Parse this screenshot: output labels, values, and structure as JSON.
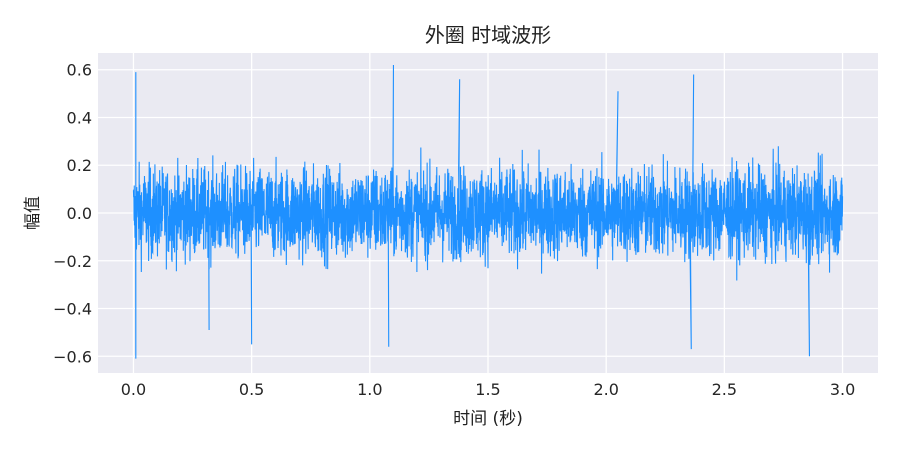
{
  "chart_data": {
    "type": "line",
    "title": "外圈 时域波形",
    "xlabel": "时间 (秒)",
    "ylabel": "幅值",
    "xlim": [
      -0.15,
      3.15
    ],
    "ylim": [
      -0.67,
      0.67
    ],
    "xticks": [
      0.0,
      0.5,
      1.0,
      1.5,
      2.0,
      2.5,
      3.0
    ],
    "xtick_labels": [
      "0.0",
      "0.5",
      "1.0",
      "1.5",
      "2.0",
      "2.5",
      "3.0"
    ],
    "yticks": [
      -0.6,
      -0.4,
      -0.2,
      0.0,
      0.2,
      0.4,
      0.6
    ],
    "ytick_labels": [
      "−0.6",
      "−0.4",
      "−0.2",
      "0.0",
      "0.2",
      "0.4",
      "0.6"
    ],
    "grid": true,
    "background": "#EAEAF2",
    "series": [
      {
        "color": "#1E90FF",
        "x_range": [
          0.0,
          3.0
        ],
        "envelope_typical": [
          -0.3,
          0.3
        ],
        "peaks": [
          {
            "x": 0.01,
            "y": 0.59
          },
          {
            "x": 0.01,
            "y": -0.61
          },
          {
            "x": 1.1,
            "y": 0.62
          },
          {
            "x": 1.08,
            "y": -0.56
          },
          {
            "x": 0.5,
            "y": -0.55
          },
          {
            "x": 2.37,
            "y": 0.58
          },
          {
            "x": 2.36,
            "y": -0.57
          },
          {
            "x": 2.86,
            "y": -0.6
          },
          {
            "x": 1.38,
            "y": 0.56
          },
          {
            "x": 0.32,
            "y": -0.49
          },
          {
            "x": 2.05,
            "y": 0.51
          }
        ]
      }
    ]
  }
}
